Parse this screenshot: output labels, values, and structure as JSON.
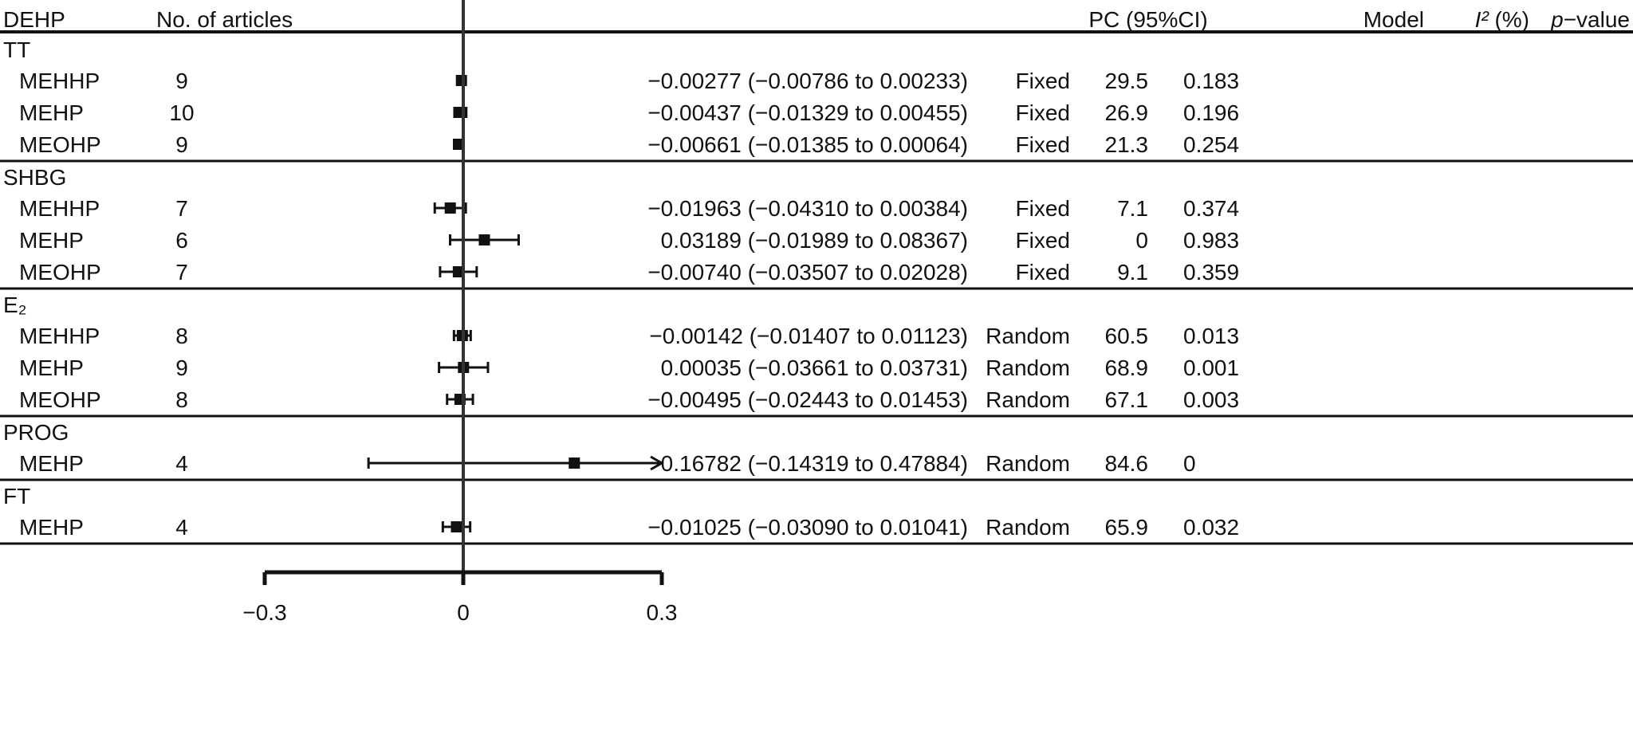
{
  "chart_data": {
    "type": "forest",
    "columns": {
      "group": "DEHP",
      "articles": "No. of articles",
      "estimate": "PC (95%CI)",
      "model": "Model",
      "i2_base": "I²",
      "i2_unit": " (%)",
      "p_prefix": "p",
      "p_suffix": "−value"
    },
    "axis": {
      "xlim": [
        -0.3,
        0.3
      ],
      "ticks": [
        {
          "value": -0.3,
          "label": "−0.3"
        },
        {
          "value": 0,
          "label": "0"
        },
        {
          "value": 0.3,
          "label": "0.3"
        }
      ],
      "reference_line": 0,
      "clip_max": 0.3
    },
    "groups": [
      {
        "name": "TT",
        "rows": [
          {
            "label": "MEHHP",
            "n": "9",
            "pc": -0.00277,
            "lo": -0.00786,
            "hi": 0.00233,
            "ci_text": "−0.00277 (−0.00786 to 0.00233)",
            "model": "Fixed",
            "i2": "29.5",
            "p": "0.183"
          },
          {
            "label": "MEHP",
            "n": "10",
            "pc": -0.00437,
            "lo": -0.01329,
            "hi": 0.00455,
            "ci_text": "−0.00437 (−0.01329 to 0.00455)",
            "model": "Fixed",
            "i2": "26.9",
            "p": "0.196"
          },
          {
            "label": "MEOHP",
            "n": "9",
            "pc": -0.00661,
            "lo": -0.01385,
            "hi": 0.00064,
            "ci_text": "−0.00661 (−0.01385 to 0.00064)",
            "model": "Fixed",
            "i2": "21.3",
            "p": "0.254"
          }
        ]
      },
      {
        "name": "SHBG",
        "rows": [
          {
            "label": "MEHHP",
            "n": "7",
            "pc": -0.01963,
            "lo": -0.0431,
            "hi": 0.00384,
            "ci_text": "−0.01963 (−0.04310 to 0.00384)",
            "model": "Fixed",
            "i2": "7.1",
            "p": "0.374"
          },
          {
            "label": "MEHP",
            "n": "6",
            "pc": 0.03189,
            "lo": -0.01989,
            "hi": 0.08367,
            "ci_text": "0.03189 (−0.01989 to 0.08367)",
            "model": "Fixed",
            "i2": "0",
            "p": "0.983"
          },
          {
            "label": "MEOHP",
            "n": "7",
            "pc": -0.0074,
            "lo": -0.03507,
            "hi": 0.02028,
            "ci_text": "−0.00740 (−0.03507 to 0.02028)",
            "model": "Fixed",
            "i2": "9.1",
            "p": "0.359"
          }
        ]
      },
      {
        "name": "E₂",
        "rows": [
          {
            "label": "MEHHP",
            "n": "8",
            "pc": -0.00142,
            "lo": -0.01407,
            "hi": 0.01123,
            "ci_text": "−0.00142 (−0.01407 to 0.01123)",
            "model": "Random",
            "i2": "60.5",
            "p": "0.013"
          },
          {
            "label": "MEHP",
            "n": "9",
            "pc": 0.00035,
            "lo": -0.03661,
            "hi": 0.03731,
            "ci_text": "0.00035 (−0.03661 to 0.03731)",
            "model": "Random",
            "i2": "68.9",
            "p": "0.001"
          },
          {
            "label": "MEOHP",
            "n": "8",
            "pc": -0.00495,
            "lo": -0.02443,
            "hi": 0.01453,
            "ci_text": "−0.00495 (−0.02443 to 0.01453)",
            "model": "Random",
            "i2": "67.1",
            "p": "0.003"
          }
        ]
      },
      {
        "name": "PROG",
        "rows": [
          {
            "label": "MEHP",
            "n": "4",
            "pc": 0.16782,
            "lo": -0.14319,
            "hi": 0.47884,
            "ci_text": "0.16782 (−0.14319 to 0.47884)",
            "model": "Random",
            "i2": "84.6",
            "p": "0"
          }
        ]
      },
      {
        "name": "FT",
        "rows": [
          {
            "label": "MEHP",
            "n": "4",
            "pc": -0.01025,
            "lo": -0.0309,
            "hi": 0.01041,
            "ci_text": "−0.01025 (−0.03090 to 0.01041)",
            "model": "Random",
            "i2": "65.9",
            "p": "0.032"
          }
        ]
      }
    ]
  }
}
